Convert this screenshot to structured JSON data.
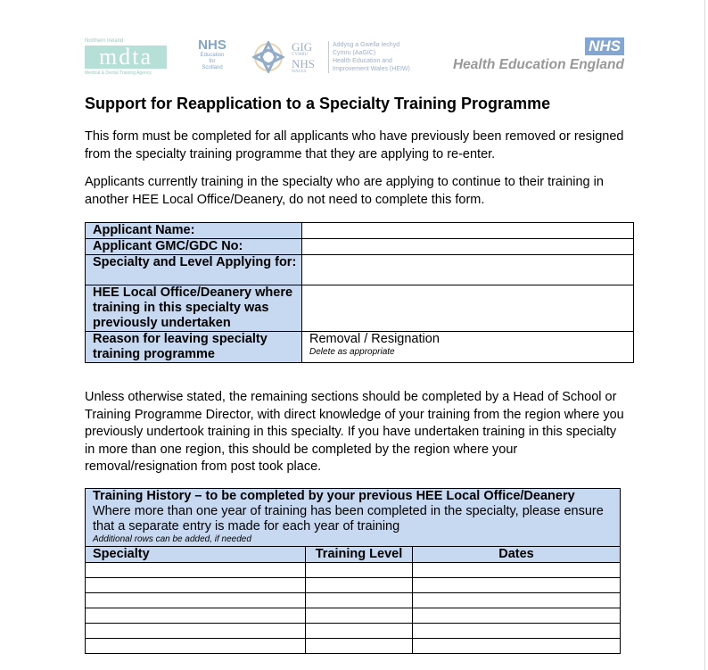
{
  "logos": {
    "nimdta_top": "Northern Ireland",
    "nimdta_mark": "mdta",
    "nimdta_sub": "Medical & Dental Training Agency",
    "nes_nhs": "NHS",
    "nes_lines": [
      "Education",
      "for",
      "Scotland"
    ],
    "gig": "GIG",
    "cymru": "CYMRU",
    "nhs_wales": "NHS",
    "wales": "WALES",
    "heiw_lines": [
      "Addysg a Gwella Iechyd",
      "Cymru (AaGIC)",
      "Health Education and",
      "Improvement Wales (HEIW)"
    ],
    "hee_nhs": "NHS",
    "hee_name": "Health Education England"
  },
  "title": "Support for Reapplication to a Specialty Training Programme",
  "intro_paragraphs": [
    "This form must be completed for all applicants who have previously been removed or resigned from the specialty training programme that they are applying to re-enter.",
    "Applicants currently training in the specialty who are applying to continue to their training in another HEE Local Office/Deanery, do not need to complete this form."
  ],
  "applicant_table": {
    "rows": [
      {
        "label": "Applicant Name:",
        "value": ""
      },
      {
        "label": "Applicant GMC/GDC No:",
        "value": ""
      },
      {
        "label": "Specialty and Level Applying for:",
        "value": ""
      },
      {
        "label": "HEE Local Office/Deanery where training in this specialty was previously undertaken",
        "value": ""
      },
      {
        "label": "Reason for leaving specialty training programme",
        "value": "Removal / Resignation",
        "note": "Delete as appropriate"
      }
    ]
  },
  "instructions": "Unless otherwise stated, the remaining sections should be completed by a Head of School or Training Programme Director, with direct knowledge of your training from the region where you previously undertook training in this specialty.  If you have undertaken training in this specialty in more than one region, this should be completed by the region where your removal/resignation from post took place.",
  "training_history": {
    "heading": "Training History – to be completed by your previous HEE Local Office/Deanery",
    "description": "Where more than one year of training has been completed in the specialty, please ensure that a separate entry is made for each year of training",
    "note": "Additional rows can be added, if needed",
    "columns": [
      "Specialty",
      "Training Level",
      "Dates"
    ],
    "rows": [
      [
        "",
        "",
        ""
      ],
      [
        "",
        "",
        ""
      ],
      [
        "",
        "",
        ""
      ],
      [
        "",
        "",
        ""
      ],
      [
        "",
        "",
        ""
      ],
      [
        "",
        "",
        ""
      ]
    ]
  }
}
